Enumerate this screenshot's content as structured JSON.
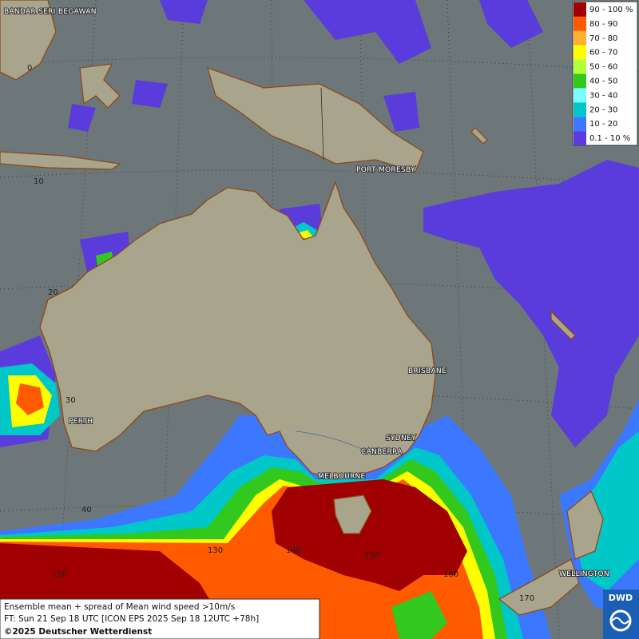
{
  "cities": [
    "BANDAR SERI BEGAWAN",
    "PORT MORESBY",
    "BRISBANE",
    "SYDNEY",
    "CANBERRA",
    "MELBOURNE",
    "PERTH",
    "WELLINGTON"
  ],
  "grid_labels": [
    "0",
    "10",
    "20",
    "30",
    "40",
    "120",
    "130",
    "140",
    "150",
    "160",
    "170"
  ],
  "legend": [
    {
      "label": "90 - 100 %",
      "color": "#a00000"
    },
    {
      "label": "80 - 90",
      "color": "#ff5a00"
    },
    {
      "label": "70 - 80",
      "color": "#ffb030"
    },
    {
      "label": "60 - 70",
      "color": "#ffff00"
    },
    {
      "label": "50 - 60",
      "color": "#b4ff3c"
    },
    {
      "label": "40 - 50",
      "color": "#32c81e"
    },
    {
      "label": "30 - 40",
      "color": "#78ffff"
    },
    {
      "label": "20 - 30",
      "color": "#00c8c8"
    },
    {
      "label": "10 - 20",
      "color": "#3c78ff"
    },
    {
      "label": "0.1 - 10 %",
      "color": "#5a3cdc"
    }
  ],
  "footer": {
    "line1": "Ensemble mean + spread of Mean wind speed >10m/s",
    "line2": "FT: Sun 21 Sep 18 UTC [ICON EPS 2025 Sep 18 12UTC +78h]",
    "copyright": "©2025 Deutscher Wetterdienst"
  },
  "logo": "DWD"
}
